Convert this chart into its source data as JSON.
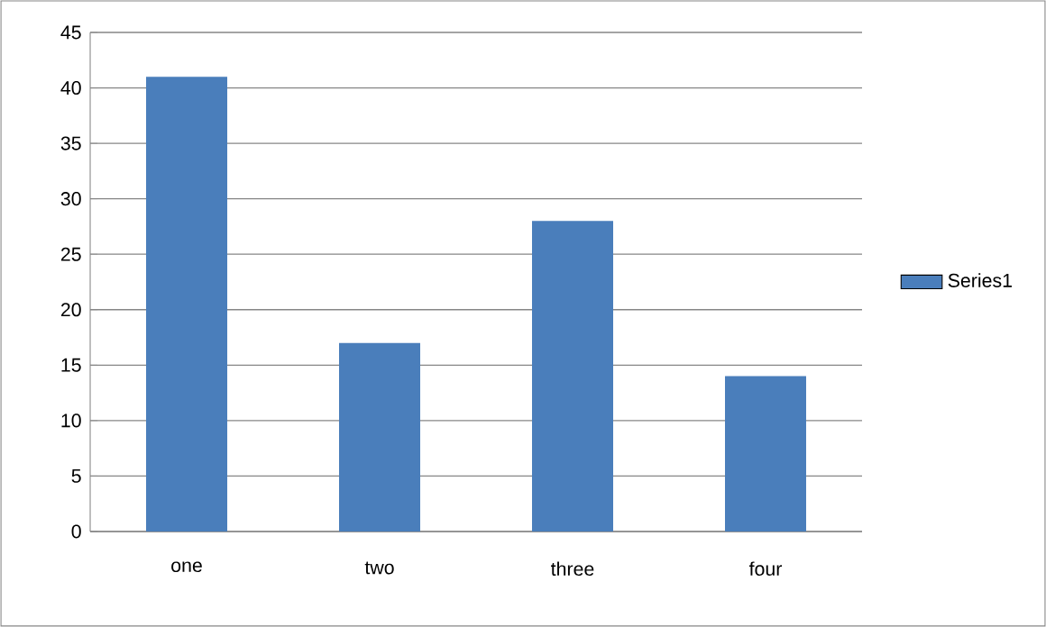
{
  "chart_data": {
    "type": "bar",
    "categories": [
      "one",
      "two",
      "three",
      "four"
    ],
    "series": [
      {
        "name": "Series1",
        "color": "#4a7ebb",
        "values": [
          41,
          17,
          28,
          14
        ]
      }
    ],
    "ylim": [
      0,
      45
    ],
    "yticks": [
      0,
      5,
      10,
      15,
      20,
      25,
      30,
      35,
      40,
      45
    ],
    "grid": "y",
    "legend": "right"
  }
}
